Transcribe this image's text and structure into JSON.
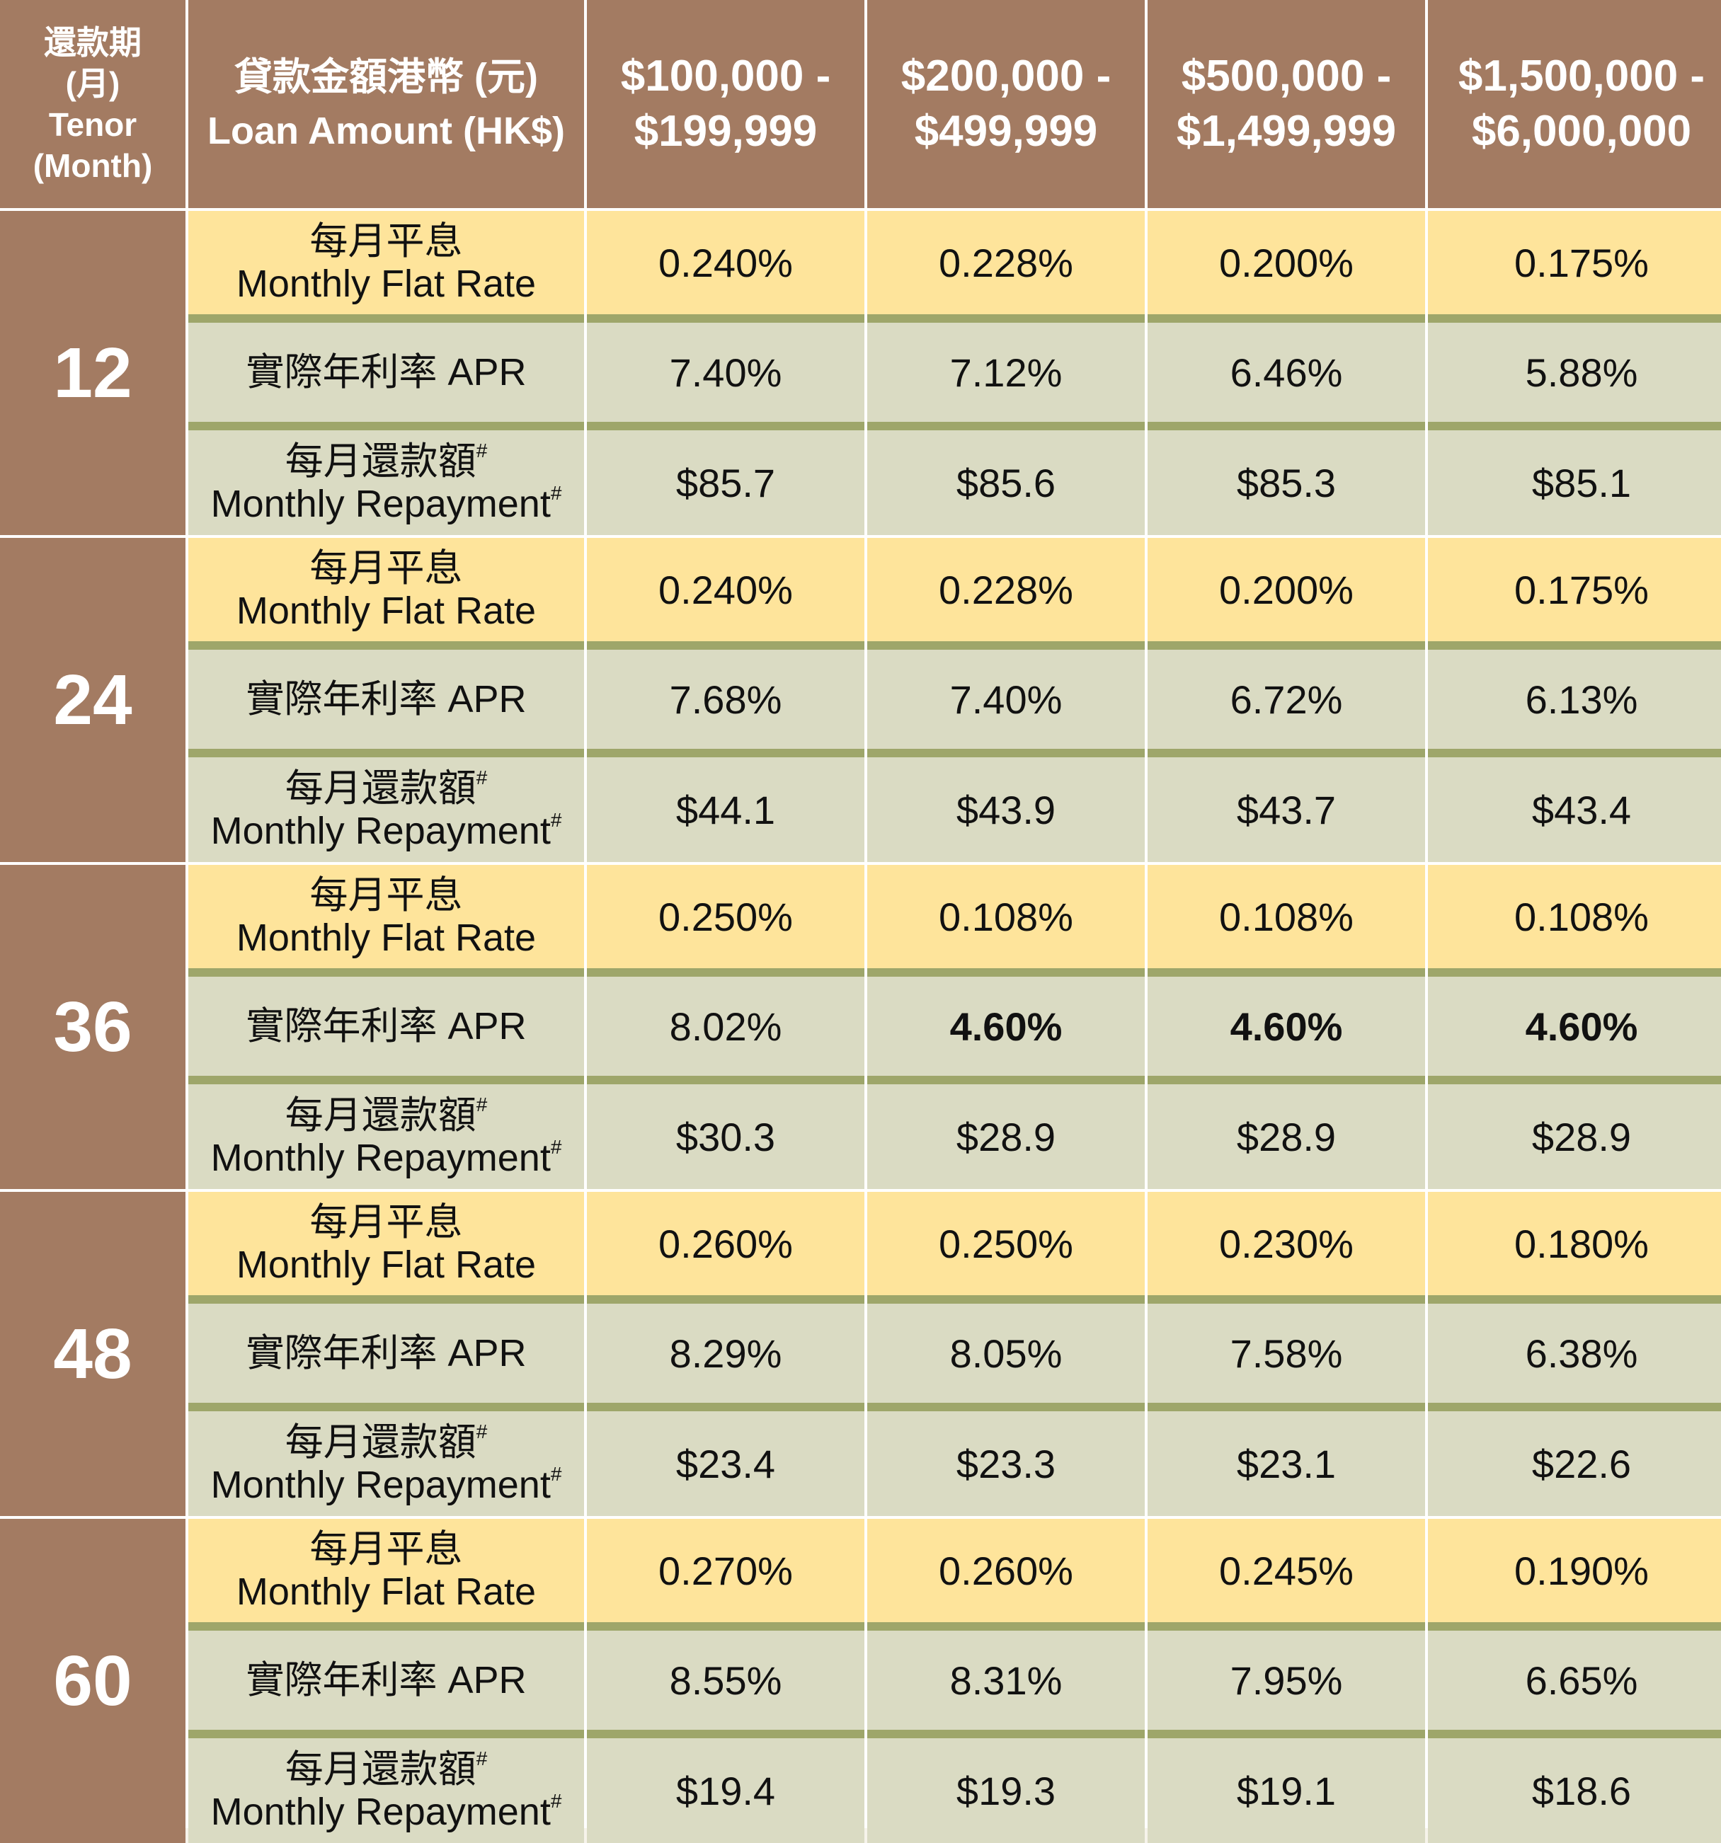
{
  "header": {
    "tenor_zh": "還款期",
    "tenor_zh_month": "(月)",
    "tenor_en": "Tenor",
    "tenor_en_month": "(Month)",
    "loan_zh": "貸款金額港幣 (元)",
    "loan_en": "Loan Amount (HK$)",
    "bands": [
      {
        "line1": "$100,000 -",
        "line2": "$199,999"
      },
      {
        "line1": "$200,000 -",
        "line2": "$499,999"
      },
      {
        "line1": "$500,000 -",
        "line2": "$1,499,999"
      },
      {
        "line1": "$1,500,000 -",
        "line2": "$6,000,000"
      }
    ]
  },
  "labels": {
    "flat_zh": "每月平息",
    "flat_en": "Monthly Flat Rate",
    "apr": "實際年利率 APR",
    "repay_zh": "每月還款額",
    "repay_en": "Monthly Repayment",
    "repay_mark": "#"
  },
  "rows": [
    {
      "tenor": "12",
      "flat": [
        "0.240%",
        "0.228%",
        "0.200%",
        "0.175%"
      ],
      "apr": [
        "7.40%",
        "7.12%",
        "6.46%",
        "5.88%"
      ],
      "repay": [
        "$85.7",
        "$85.6",
        "$85.3",
        "$85.1"
      ]
    },
    {
      "tenor": "24",
      "flat": [
        "0.240%",
        "0.228%",
        "0.200%",
        "0.175%"
      ],
      "apr": [
        "7.68%",
        "7.40%",
        "6.72%",
        "6.13%"
      ],
      "repay": [
        "$44.1",
        "$43.9",
        "$43.7",
        "$43.4"
      ]
    },
    {
      "tenor": "36",
      "flat": [
        "0.250%",
        "0.108%",
        "0.108%",
        "0.108%"
      ],
      "apr": [
        "8.02%",
        "4.60%",
        "4.60%",
        "4.60%"
      ],
      "apr_bold": [
        false,
        true,
        true,
        true
      ],
      "repay": [
        "$30.3",
        "$28.9",
        "$28.9",
        "$28.9"
      ]
    },
    {
      "tenor": "48",
      "flat": [
        "0.260%",
        "0.250%",
        "0.230%",
        "0.180%"
      ],
      "apr": [
        "8.29%",
        "8.05%",
        "7.58%",
        "6.38%"
      ],
      "repay": [
        "$23.4",
        "$23.3",
        "$23.1",
        "$22.6"
      ]
    },
    {
      "tenor": "60",
      "flat": [
        "0.270%",
        "0.260%",
        "0.245%",
        "0.190%"
      ],
      "apr": [
        "8.55%",
        "8.31%",
        "7.95%",
        "6.65%"
      ],
      "repay": [
        "$19.4",
        "$19.3",
        "$19.1",
        "$18.6"
      ]
    }
  ]
}
